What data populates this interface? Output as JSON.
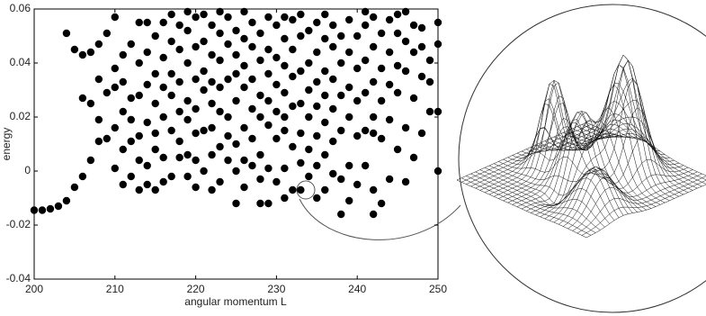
{
  "chart_data": {
    "type": "scatter",
    "xlabel": "angular momentum L",
    "ylabel": "energy",
    "xlim": [
      200,
      250
    ],
    "ylim": [
      -0.04,
      0.06
    ],
    "xticks": [
      200,
      210,
      220,
      230,
      240,
      250
    ],
    "yticks": [
      -0.04,
      -0.02,
      0,
      0.02,
      0.04,
      0.06
    ],
    "color": "#000000",
    "x": [
      200,
      201,
      202,
      203,
      204,
      204,
      205,
      205,
      206,
      206,
      206,
      207,
      207,
      207,
      208,
      208,
      208,
      208,
      209,
      209,
      209,
      210,
      210,
      210,
      210,
      210,
      211,
      211,
      211,
      211,
      211,
      212,
      212,
      212,
      212,
      212,
      213,
      213,
      213,
      213,
      213,
      213,
      214,
      214,
      214,
      214,
      214,
      214,
      215,
      215,
      215,
      215,
      215,
      215,
      216,
      216,
      216,
      216,
      216,
      216,
      217,
      217,
      217,
      217,
      217,
      217,
      218,
      218,
      218,
      218,
      218,
      218,
      219,
      219,
      219,
      219,
      219,
      219,
      219,
      220,
      220,
      220,
      220,
      220,
      220,
      220,
      221,
      221,
      221,
      221,
      221,
      221,
      222,
      222,
      222,
      222,
      222,
      222,
      222,
      223,
      223,
      223,
      223,
      223,
      223,
      223,
      224,
      224,
      224,
      224,
      224,
      224,
      225,
      225,
      225,
      225,
      225,
      225,
      225,
      226,
      226,
      226,
      226,
      226,
      226,
      226,
      227,
      227,
      227,
      227,
      227,
      227,
      228,
      228,
      228,
      228,
      228,
      228,
      228,
      229,
      229,
      229,
      229,
      229,
      229,
      229,
      230,
      230,
      230,
      230,
      230,
      230,
      231,
      231,
      231,
      231,
      231,
      231,
      231,
      231,
      232,
      232,
      232,
      232,
      232,
      232,
      233,
      233,
      233,
      233,
      233,
      233,
      233,
      234,
      234,
      234,
      234,
      234,
      234,
      235,
      235,
      235,
      235,
      235,
      235,
      235,
      236,
      236,
      236,
      236,
      236,
      236,
      236,
      237,
      237,
      237,
      237,
      237,
      237,
      238,
      238,
      238,
      238,
      238,
      238,
      239,
      239,
      239,
      239,
      239,
      239,
      240,
      240,
      240,
      240,
      240,
      241,
      241,
      241,
      241,
      241,
      241,
      242,
      242,
      242,
      242,
      242,
      242,
      242,
      243,
      243,
      243,
      243,
      243,
      244,
      244,
      244,
      244,
      244,
      245,
      245,
      245,
      245,
      245,
      246,
      246,
      246,
      246,
      246,
      247,
      247,
      247,
      247,
      248,
      248,
      248,
      248,
      249,
      249,
      249,
      250,
      250,
      250,
      250
    ],
    "values": [
      -0.0145,
      -0.0145,
      -0.014,
      -0.013,
      -0.011,
      0.051,
      -0.006,
      0.045,
      -0.002,
      0.027,
      0.043,
      0.004,
      0.025,
      0.044,
      0.011,
      0.019,
      0.034,
      0.047,
      0.012,
      0.029,
      0.051,
      0.001,
      0.016,
      0.031,
      0.038,
      0.057,
      -0.005,
      0.008,
      0.022,
      0.033,
      0.043,
      -0.002,
      0.011,
      0.019,
      0.027,
      0.047,
      -0.007,
      0.004,
      0.013,
      0.028,
      0.04,
      0.055,
      -0.005,
      0.002,
      0.018,
      0.032,
      0.044,
      0.055,
      -0.007,
      0.008,
      0.014,
      0.025,
      0.036,
      0.05,
      -0.004,
      0.005,
      0.02,
      0.031,
      0.042,
      0.055,
      -0.002,
      0.015,
      0.028,
      0.036,
      0.048,
      0.058,
      0.005,
      0.011,
      0.022,
      0.033,
      0.045,
      0.054,
      -0.002,
      0.006,
      0.019,
      0.026,
      0.04,
      0.052,
      0.059,
      -0.006,
      0.004,
      0.014,
      0.023,
      0.034,
      0.046,
      0.057,
      0.0,
      0.015,
      0.03,
      0.037,
      0.048,
      0.058,
      -0.007,
      0.006,
      0.016,
      0.025,
      0.033,
      0.043,
      0.054,
      -0.004,
      0.009,
      0.022,
      0.031,
      0.041,
      0.051,
      0.059,
      0.004,
      0.013,
      0.02,
      0.034,
      0.047,
      0.057,
      -0.012,
      0.0,
      0.01,
      0.026,
      0.036,
      0.043,
      0.052,
      -0.006,
      0.004,
      0.016,
      0.031,
      0.039,
      0.049,
      0.059,
      0.002,
      0.012,
      0.023,
      0.034,
      0.046,
      0.055,
      -0.012,
      -0.003,
      0.006,
      0.02,
      0.028,
      0.041,
      0.051,
      -0.012,
      0.001,
      0.017,
      0.026,
      0.036,
      0.045,
      0.057,
      -0.004,
      0.012,
      0.022,
      0.032,
      0.042,
      0.054,
      -0.01,
      0.001,
      0.015,
      0.02,
      0.029,
      0.039,
      0.049,
      0.057,
      -0.007,
      0.009,
      0.024,
      0.035,
      0.045,
      0.056,
      -0.007,
      0.003,
      0.014,
      0.025,
      0.037,
      0.05,
      0.058,
      -0.002,
      0.008,
      0.02,
      0.03,
      0.04,
      0.052,
      -0.01,
      0.002,
      0.013,
      0.024,
      0.033,
      0.044,
      0.055,
      -0.007,
      0.006,
      0.018,
      0.028,
      0.037,
      0.049,
      0.058,
      -0.001,
      0.011,
      0.023,
      0.034,
      0.046,
      0.054,
      -0.016,
      -0.003,
      0.015,
      0.028,
      0.04,
      0.05,
      -0.011,
      0.002,
      0.02,
      0.031,
      0.044,
      0.056,
      -0.005,
      0.013,
      0.026,
      0.038,
      0.05,
      0.002,
      0.015,
      0.029,
      0.041,
      0.054,
      0.059,
      -0.016,
      -0.007,
      0.014,
      0.02,
      0.033,
      0.046,
      0.057,
      -0.012,
      0.012,
      0.026,
      0.038,
      0.051,
      -0.003,
      0.019,
      0.032,
      0.044,
      0.056,
      0.008,
      0.029,
      0.039,
      0.051,
      0.058,
      -0.004,
      0.016,
      0.037,
      0.048,
      0.059,
      0.005,
      0.027,
      0.044,
      0.054,
      0.014,
      0.035,
      0.046,
      0.053,
      0.022,
      0.033,
      0.041,
      0.0,
      0.022,
      0.047,
      0.055
    ]
  }
}
